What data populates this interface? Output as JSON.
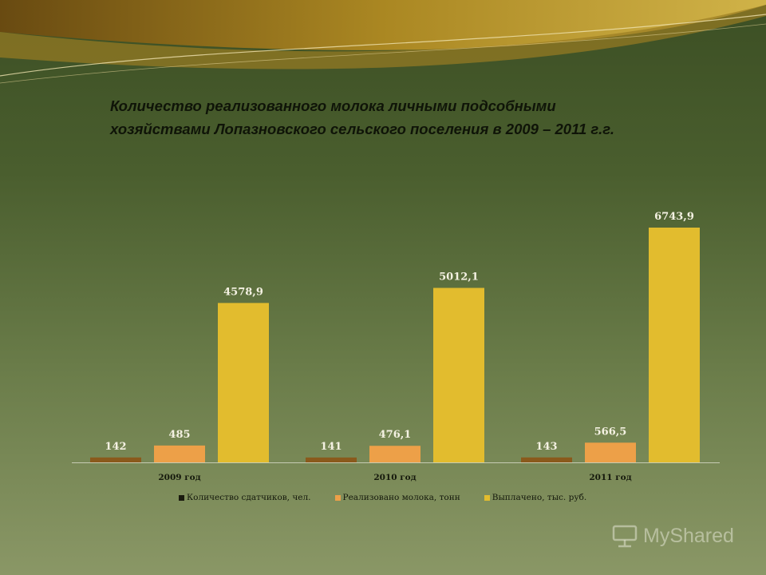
{
  "title_lines": [
    "Количество реализованного молока личными подсобными",
    "хозяйствами Лопазновского сельского поселения в 2009 – 2011 г.г."
  ],
  "chart_data": {
    "type": "bar",
    "categories": [
      "2009 год",
      "2010 год",
      "2011 год"
    ],
    "series": [
      {
        "name": "Количество сдатчиков, чел.",
        "values": [
          142,
          141,
          143
        ],
        "labels": [
          "142",
          "141",
          "143"
        ],
        "color": "#8a5a1c"
      },
      {
        "name": "Реализовано молока, тонн",
        "values": [
          485,
          476.1,
          566.5
        ],
        "labels": [
          "485",
          "476,1",
          "566,5"
        ],
        "color": "#eda048"
      },
      {
        "name": "Выплачено, тыс. руб.",
        "values": [
          4578.9,
          5012.1,
          6743.9
        ],
        "labels": [
          "4578,9",
          "5012,1",
          "6743,9"
        ],
        "color": "#e2bc2e"
      }
    ],
    "ylim": [
      0,
      7200
    ],
    "legend_position": "bottom",
    "grid": false
  },
  "watermark": {
    "text": "MyShared",
    "icon": "presentation-board-icon"
  }
}
